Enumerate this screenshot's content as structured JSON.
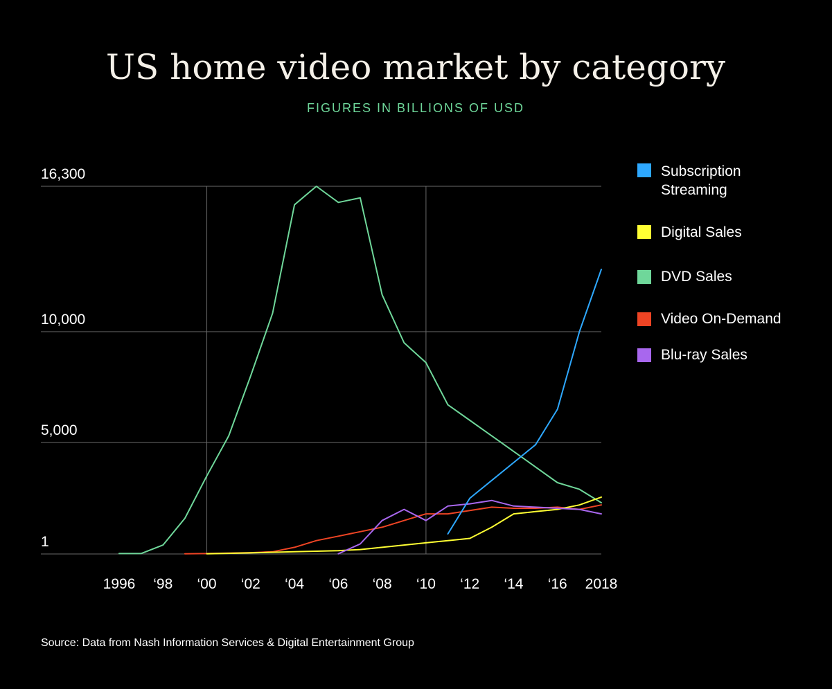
{
  "colors": {
    "background": "#000000",
    "title": "#f4f0e8",
    "subtitle": "#6fd79a",
    "grid": "#6a6a6a"
  },
  "chart_data": {
    "type": "line",
    "title": "US home video market by category",
    "subtitle": "FIGURES IN BILLIONS OF USD",
    "source": "Source: Data from Nash Information Services & Digital Entertainment Group",
    "xlim": [
      1996,
      2018
    ],
    "ylim": [
      1,
      16300
    ],
    "y_ticks": [
      {
        "value": 16300,
        "label": "16,300"
      },
      {
        "value": 10000,
        "label": "10,000"
      },
      {
        "value": 5000,
        "label": "5,000"
      },
      {
        "value": 1,
        "label": "1"
      }
    ],
    "x_ticks": [
      {
        "value": 1996,
        "label": "1996"
      },
      {
        "value": 1998,
        "label": "‘98"
      },
      {
        "value": 2000,
        "label": "‘00"
      },
      {
        "value": 2002,
        "label": "‘02"
      },
      {
        "value": 2004,
        "label": "‘04"
      },
      {
        "value": 2006,
        "label": "‘06"
      },
      {
        "value": 2008,
        "label": "‘08"
      },
      {
        "value": 2010,
        "label": "‘10"
      },
      {
        "value": 2012,
        "label": "‘12"
      },
      {
        "value": 2014,
        "label": "‘14"
      },
      {
        "value": 2016,
        "label": "‘16"
      },
      {
        "value": 2018,
        "label": "2018"
      }
    ],
    "vertical_grid_x": [
      2000,
      2010
    ],
    "legend_position": "right",
    "series": [
      {
        "name": "Subscription Streaming",
        "color": "#2ea8ff",
        "points": [
          [
            2011,
            900
          ],
          [
            2012,
            2500
          ],
          [
            2013,
            3300
          ],
          [
            2014,
            4100
          ],
          [
            2015,
            4900
          ],
          [
            2016,
            6500
          ],
          [
            2017,
            10000
          ],
          [
            2018,
            12700
          ]
        ]
      },
      {
        "name": "Digital Sales",
        "color": "#ffff33",
        "points": [
          [
            2000,
            10
          ],
          [
            2002,
            50
          ],
          [
            2004,
            100
          ],
          [
            2006,
            150
          ],
          [
            2007,
            200
          ],
          [
            2008,
            300
          ],
          [
            2009,
            400
          ],
          [
            2010,
            500
          ],
          [
            2011,
            600
          ],
          [
            2012,
            700
          ],
          [
            2013,
            1200
          ],
          [
            2014,
            1800
          ],
          [
            2015,
            1900
          ],
          [
            2016,
            2000
          ],
          [
            2017,
            2200
          ],
          [
            2018,
            2550
          ]
        ]
      },
      {
        "name": "DVD Sales",
        "color": "#6fd79a",
        "points": [
          [
            1996,
            20
          ],
          [
            1997,
            20
          ],
          [
            1998,
            400
          ],
          [
            1999,
            1600
          ],
          [
            2000,
            3500
          ],
          [
            2001,
            5300
          ],
          [
            2002,
            8000
          ],
          [
            2003,
            10800
          ],
          [
            2004,
            15500
          ],
          [
            2005,
            16300
          ],
          [
            2006,
            15600
          ],
          [
            2007,
            15800
          ],
          [
            2008,
            11600
          ],
          [
            2009,
            9500
          ],
          [
            2010,
            8600
          ],
          [
            2011,
            6700
          ],
          [
            2012,
            6000
          ],
          [
            2013,
            5300
          ],
          [
            2014,
            4600
          ],
          [
            2015,
            3900
          ],
          [
            2016,
            3200
          ],
          [
            2017,
            2900
          ],
          [
            2018,
            2300
          ]
        ]
      },
      {
        "name": "Video On-Demand",
        "color": "#ee4424",
        "points": [
          [
            1999,
            10
          ],
          [
            2000,
            20
          ],
          [
            2001,
            40
          ],
          [
            2002,
            60
          ],
          [
            2003,
            100
          ],
          [
            2004,
            300
          ],
          [
            2005,
            600
          ],
          [
            2006,
            800
          ],
          [
            2007,
            1000
          ],
          [
            2008,
            1200
          ],
          [
            2009,
            1500
          ],
          [
            2010,
            1800
          ],
          [
            2011,
            1800
          ],
          [
            2012,
            1950
          ],
          [
            2013,
            2100
          ],
          [
            2014,
            2050
          ],
          [
            2015,
            2050
          ],
          [
            2016,
            2100
          ],
          [
            2017,
            2000
          ],
          [
            2018,
            2200
          ]
        ]
      },
      {
        "name": "Blu-ray Sales",
        "color": "#a867ee",
        "points": [
          [
            2006,
            10
          ],
          [
            2007,
            450
          ],
          [
            2008,
            1500
          ],
          [
            2009,
            2000
          ],
          [
            2010,
            1500
          ],
          [
            2011,
            2150
          ],
          [
            2012,
            2250
          ],
          [
            2013,
            2400
          ],
          [
            2014,
            2150
          ],
          [
            2015,
            2100
          ],
          [
            2016,
            2050
          ],
          [
            2017,
            2000
          ],
          [
            2018,
            1800
          ]
        ]
      }
    ]
  }
}
